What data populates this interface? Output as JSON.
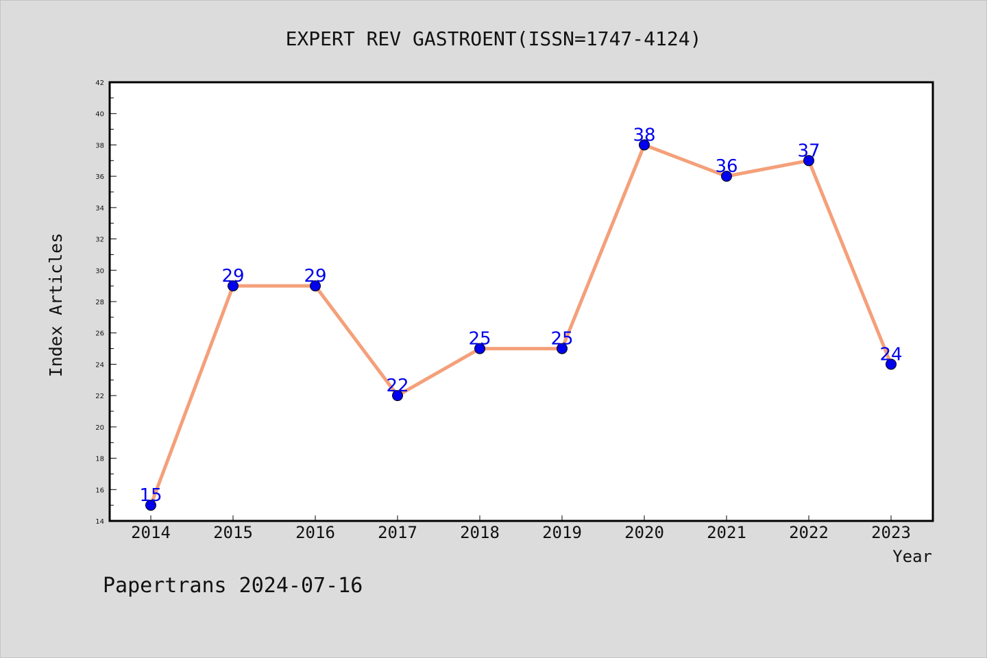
{
  "chart_data": {
    "type": "line",
    "title": "EXPERT REV GASTROENT(ISSN=1747-4124)",
    "xlabel": "Year",
    "ylabel": "Index Articles",
    "categories": [
      "2014",
      "2015",
      "2016",
      "2017",
      "2018",
      "2019",
      "2020",
      "2021",
      "2022",
      "2023"
    ],
    "values": [
      15,
      29,
      29,
      22,
      25,
      25,
      38,
      36,
      37,
      24
    ],
    "ylim": [
      14,
      42
    ],
    "yticks": [
      "14",
      "16",
      "18",
      "20",
      "22",
      "24",
      "26",
      "28",
      "30",
      "32",
      "34",
      "36",
      "38",
      "40",
      "42"
    ],
    "grid": false,
    "legend": "none",
    "line_color": "#f4a07a",
    "marker_color": "#0000ee",
    "label_color": "#0000ee",
    "footer": "Papertrans 2024-07-16"
  }
}
